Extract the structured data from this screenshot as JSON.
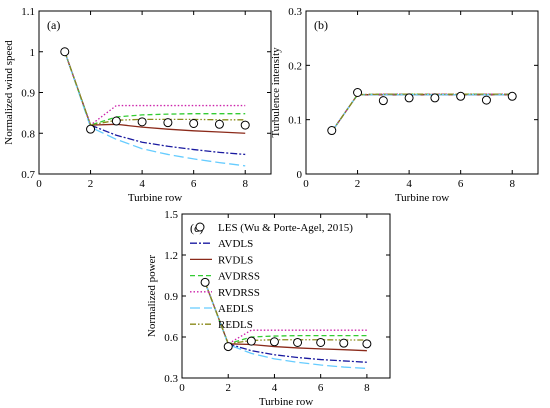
{
  "legend": {
    "entries": [
      {
        "label": "LES  (Wu & Porte-Agel, 2015)",
        "color": "#000000",
        "dash": "none",
        "marker": "circle"
      },
      {
        "label": "AVDLS",
        "color": "#1a1aa0",
        "dash": "dashdot"
      },
      {
        "label": "RVDLS",
        "color": "#8b2a1a",
        "dash": "solid"
      },
      {
        "label": "AVDRSS",
        "color": "#33cc33",
        "dash": "dashed"
      },
      {
        "label": "RVDRSS",
        "color": "#cc22aa",
        "dash": "dotted"
      },
      {
        "label": "AEDLS",
        "color": "#66ccff",
        "dash": "longdash"
      },
      {
        "label": "REDLS",
        "color": "#8a8a1a",
        "dash": "dashdotdot"
      }
    ]
  },
  "chart_data": [
    {
      "type": "line",
      "panel_label": "(a)",
      "xlabel": "Turbine row",
      "ylabel": "Normalized wind speed",
      "xlim": [
        0,
        9
      ],
      "ylim": [
        0.7,
        1.1
      ],
      "xticks": [
        0,
        2,
        4,
        6,
        8
      ],
      "yticks": [
        0.7,
        0.8,
        0.9,
        1,
        1.1
      ],
      "ytick_labels": [
        "0.7",
        "0.8",
        "0.9",
        "1",
        "1.1"
      ],
      "markers": {
        "name": "LES",
        "x": [
          1,
          2,
          3,
          4,
          5,
          6,
          7,
          8
        ],
        "values": [
          1.0,
          0.81,
          0.83,
          0.828,
          0.826,
          0.824,
          0.822,
          0.82
        ]
      },
      "series": [
        {
          "key": "AVDLS",
          "x": [
            1,
            2,
            3,
            4,
            5,
            6,
            7,
            8
          ],
          "values": [
            1.0,
            0.82,
            0.795,
            0.778,
            0.768,
            0.76,
            0.753,
            0.748
          ]
        },
        {
          "key": "RVDLS",
          "x": [
            1,
            2,
            3,
            4,
            5,
            6,
            7,
            8
          ],
          "values": [
            1.0,
            0.82,
            0.822,
            0.815,
            0.81,
            0.806,
            0.803,
            0.8
          ]
        },
        {
          "key": "AVDRSS",
          "x": [
            1,
            2,
            3,
            4,
            5,
            6,
            7,
            8
          ],
          "values": [
            1.0,
            0.82,
            0.84,
            0.845,
            0.847,
            0.848,
            0.848,
            0.848
          ]
        },
        {
          "key": "RVDRSS",
          "x": [
            1,
            2,
            3,
            4,
            5,
            6,
            7,
            8
          ],
          "values": [
            1.0,
            0.82,
            0.868,
            0.868,
            0.868,
            0.868,
            0.868,
            0.868
          ]
        },
        {
          "key": "AEDLS",
          "x": [
            1,
            2,
            3,
            4,
            5,
            6,
            7,
            8
          ],
          "values": [
            1.0,
            0.815,
            0.785,
            0.762,
            0.748,
            0.737,
            0.728,
            0.72
          ]
        },
        {
          "key": "REDLS",
          "x": [
            1,
            2,
            3,
            4,
            5,
            6,
            7,
            8
          ],
          "values": [
            1.0,
            0.82,
            0.832,
            0.834,
            0.834,
            0.834,
            0.833,
            0.833
          ]
        }
      ]
    },
    {
      "type": "line",
      "panel_label": "(b)",
      "xlabel": "Turbine row",
      "ylabel": "Turbulence intensity",
      "xlim": [
        0,
        9
      ],
      "ylim": [
        0,
        0.3
      ],
      "xticks": [
        0,
        2,
        4,
        6,
        8
      ],
      "yticks": [
        0,
        0.1,
        0.2,
        0.3
      ],
      "ytick_labels": [
        "0",
        "0.1",
        "0.2",
        "0.3"
      ],
      "markers": {
        "name": "LES",
        "x": [
          1,
          2,
          3,
          4,
          5,
          6,
          7,
          8
        ],
        "values": [
          0.08,
          0.15,
          0.135,
          0.14,
          0.14,
          0.143,
          0.136,
          0.143
        ]
      },
      "series": [
        {
          "key": "AVDLS",
          "x": [
            1,
            2,
            3,
            4,
            5,
            6,
            7,
            8
          ],
          "values": [
            0.078,
            0.146,
            0.146,
            0.146,
            0.146,
            0.146,
            0.146,
            0.146
          ]
        },
        {
          "key": "RVDLS",
          "x": [
            1,
            2,
            3,
            4,
            5,
            6,
            7,
            8
          ],
          "values": [
            0.078,
            0.146,
            0.146,
            0.146,
            0.146,
            0.146,
            0.146,
            0.146
          ]
        },
        {
          "key": "AVDRSS",
          "x": [
            1,
            2,
            3,
            4,
            5,
            6,
            7,
            8
          ],
          "values": [
            0.078,
            0.146,
            0.147,
            0.147,
            0.147,
            0.147,
            0.147,
            0.147
          ]
        },
        {
          "key": "RVDRSS",
          "x": [
            1,
            2,
            3,
            4,
            5,
            6,
            7,
            8
          ],
          "values": [
            0.078,
            0.146,
            0.147,
            0.147,
            0.147,
            0.147,
            0.147,
            0.147
          ]
        },
        {
          "key": "AEDLS",
          "x": [
            1,
            2,
            3,
            4,
            5,
            6,
            7,
            8
          ],
          "values": [
            0.078,
            0.146,
            0.146,
            0.146,
            0.146,
            0.146,
            0.146,
            0.146
          ]
        },
        {
          "key": "REDLS",
          "x": [
            1,
            2,
            3,
            4,
            5,
            6,
            7,
            8
          ],
          "values": [
            0.078,
            0.146,
            0.147,
            0.147,
            0.147,
            0.147,
            0.147,
            0.147
          ]
        }
      ]
    },
    {
      "type": "line",
      "panel_label": "(c)",
      "xlabel": "Turbine row",
      "ylabel": "Normalized power",
      "xlim": [
        0,
        9
      ],
      "ylim": [
        0.3,
        1.5
      ],
      "xticks": [
        0,
        2,
        4,
        6,
        8
      ],
      "yticks": [
        0.3,
        0.6,
        0.9,
        1.2,
        1.5
      ],
      "ytick_labels": [
        "0.3",
        "0.6",
        "0.9",
        "1.2",
        "1.5"
      ],
      "markers": {
        "name": "LES",
        "x": [
          1,
          2,
          3,
          4,
          5,
          6,
          7,
          8
        ],
        "values": [
          1.0,
          0.53,
          0.57,
          0.565,
          0.56,
          0.56,
          0.555,
          0.55
        ]
      },
      "series": [
        {
          "key": "AVDLS",
          "x": [
            1,
            2,
            3,
            4,
            5,
            6,
            7,
            8
          ],
          "values": [
            1.0,
            0.55,
            0.5,
            0.47,
            0.45,
            0.435,
            0.425,
            0.415
          ]
        },
        {
          "key": "RVDLS",
          "x": [
            1,
            2,
            3,
            4,
            5,
            6,
            7,
            8
          ],
          "values": [
            1.0,
            0.55,
            0.545,
            0.53,
            0.52,
            0.513,
            0.507,
            0.5
          ]
        },
        {
          "key": "AVDRSS",
          "x": [
            1,
            2,
            3,
            4,
            5,
            6,
            7,
            8
          ],
          "values": [
            1.0,
            0.55,
            0.6,
            0.607,
            0.61,
            0.61,
            0.61,
            0.61
          ]
        },
        {
          "key": "RVDRSS",
          "x": [
            1,
            2,
            3,
            4,
            5,
            6,
            7,
            8
          ],
          "values": [
            1.0,
            0.55,
            0.65,
            0.65,
            0.65,
            0.65,
            0.65,
            0.65
          ]
        },
        {
          "key": "AEDLS",
          "x": [
            1,
            2,
            3,
            4,
            5,
            6,
            7,
            8
          ],
          "values": [
            1.0,
            0.545,
            0.48,
            0.44,
            0.415,
            0.395,
            0.38,
            0.37
          ]
        },
        {
          "key": "REDLS",
          "x": [
            1,
            2,
            3,
            4,
            5,
            6,
            7,
            8
          ],
          "values": [
            1.0,
            0.55,
            0.575,
            0.58,
            0.58,
            0.58,
            0.578,
            0.578
          ]
        }
      ]
    }
  ]
}
